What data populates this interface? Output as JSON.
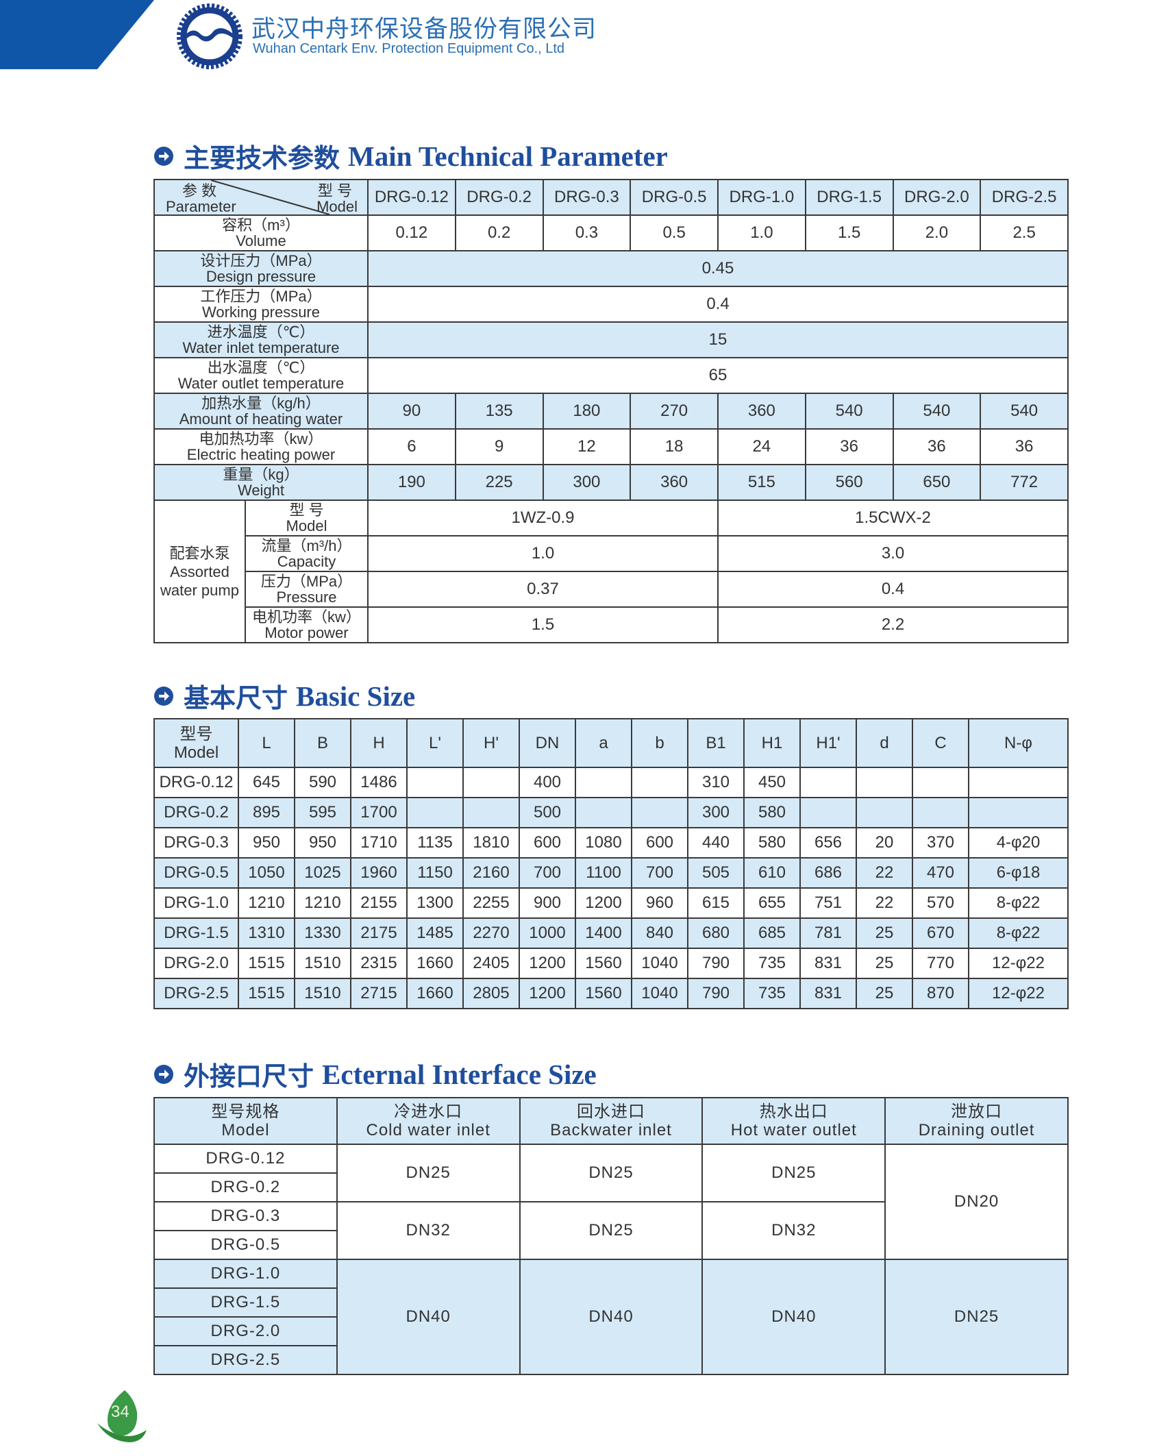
{
  "header": {
    "company_cn": "武汉中舟环保设备股份有限公司",
    "company_en": "Wuhan Centark Env. Protection Equipment Co., Ltd",
    "brand_color": "#1f4e9c"
  },
  "tech": {
    "title_cn": "主要技术参数",
    "title_en": "Main Technical Parameter",
    "corner": {
      "param_cn": "参 数",
      "param_en": "Parameter",
      "model_cn": "型 号",
      "model_en": "Model"
    },
    "models": [
      "DRG-0.12",
      "DRG-0.2",
      "DRG-0.3",
      "DRG-0.5",
      "DRG-1.0",
      "DRG-1.5",
      "DRG-2.0",
      "DRG-2.5"
    ],
    "rows": [
      {
        "cn": "容积（m³）",
        "en": "Volume",
        "values": [
          "0.12",
          "0.2",
          "0.3",
          "0.5",
          "1.0",
          "1.5",
          "2.0",
          "2.5"
        ]
      },
      {
        "cn": "设计压力（MPa）",
        "en": "Design pressure",
        "value": "0.45"
      },
      {
        "cn": "工作压力（MPa）",
        "en": "Working pressure",
        "value": "0.4"
      },
      {
        "cn": "进水温度（℃）",
        "en": "Water inlet temperature",
        "value": "15"
      },
      {
        "cn": "出水温度（℃）",
        "en": "Water outlet temperature",
        "value": "65"
      },
      {
        "cn": "加热水量（kg/h）",
        "en": "Amount of heating water",
        "values": [
          "90",
          "135",
          "180",
          "270",
          "360",
          "540",
          "540",
          "540"
        ]
      },
      {
        "cn": "电加热功率（kw）",
        "en": "Electric heating power",
        "values": [
          "6",
          "9",
          "12",
          "18",
          "24",
          "36",
          "36",
          "36"
        ]
      },
      {
        "cn": "重量（kg）",
        "en": "Weight",
        "values": [
          "190",
          "225",
          "300",
          "360",
          "515",
          "560",
          "650",
          "772"
        ]
      }
    ],
    "pump": {
      "label_cn": "配套水泵",
      "label_en_1": "Assorted",
      "label_en_2": "water pump",
      "rows": [
        {
          "cn": "型 号",
          "en": "Model",
          "values": [
            "1WZ-0.9",
            "1.5CWX-2"
          ]
        },
        {
          "cn": "流量（m³/h）",
          "en": "Capacity",
          "values": [
            "1.0",
            "3.0"
          ]
        },
        {
          "cn": "压力（MPa）",
          "en": "Pressure",
          "values": [
            "0.37",
            "0.4"
          ]
        },
        {
          "cn": "电机功率（kw）",
          "en": "Motor power",
          "values": [
            "1.5",
            "2.2"
          ]
        }
      ]
    }
  },
  "basic": {
    "title_cn": "基本尺寸",
    "title_en": "Basic Size",
    "model_header_cn": "型号",
    "model_header_en": "Model",
    "columns": [
      "L",
      "B",
      "H",
      "L'",
      "H'",
      "DN",
      "a",
      "b",
      "B1",
      "H1",
      "H1'",
      "d",
      "C",
      "N-φ"
    ],
    "rows": [
      {
        "model": "DRG-0.12",
        "values": [
          "645",
          "590",
          "1486",
          "",
          "",
          "400",
          "",
          "",
          "310",
          "450",
          "",
          "",
          "",
          ""
        ]
      },
      {
        "model": "DRG-0.2",
        "values": [
          "895",
          "595",
          "1700",
          "",
          "",
          "500",
          "",
          "",
          "300",
          "580",
          "",
          "",
          "",
          ""
        ]
      },
      {
        "model": "DRG-0.3",
        "values": [
          "950",
          "950",
          "1710",
          "1135",
          "1810",
          "600",
          "1080",
          "600",
          "440",
          "580",
          "656",
          "20",
          "370",
          "4-φ20"
        ]
      },
      {
        "model": "DRG-0.5",
        "values": [
          "1050",
          "1025",
          "1960",
          "1150",
          "2160",
          "700",
          "1100",
          "700",
          "505",
          "610",
          "686",
          "22",
          "470",
          "6-φ18"
        ]
      },
      {
        "model": "DRG-1.0",
        "values": [
          "1210",
          "1210",
          "2155",
          "1300",
          "2255",
          "900",
          "1200",
          "960",
          "615",
          "655",
          "751",
          "22",
          "570",
          "8-φ22"
        ]
      },
      {
        "model": "DRG-1.5",
        "values": [
          "1310",
          "1330",
          "2175",
          "1485",
          "2270",
          "1000",
          "1400",
          "840",
          "680",
          "685",
          "781",
          "25",
          "670",
          "8-φ22"
        ]
      },
      {
        "model": "DRG-2.0",
        "values": [
          "1515",
          "1510",
          "2315",
          "1660",
          "2405",
          "1200",
          "1560",
          "1040",
          "790",
          "735",
          "831",
          "25",
          "770",
          "12-φ22"
        ]
      },
      {
        "model": "DRG-2.5",
        "values": [
          "1515",
          "1510",
          "2715",
          "1660",
          "2805",
          "1200",
          "1560",
          "1040",
          "790",
          "735",
          "831",
          "25",
          "870",
          "12-φ22"
        ]
      }
    ]
  },
  "interface": {
    "title_cn": "外接口尺寸",
    "title_en": "Ecternal Interface Size",
    "headers": [
      {
        "cn": "型号规格",
        "en": "Model"
      },
      {
        "cn": "冷进水口",
        "en": "Cold water inlet"
      },
      {
        "cn": "回水进口",
        "en": "Backwater inlet"
      },
      {
        "cn": "热水出口",
        "en": "Hot water outlet"
      },
      {
        "cn": "泄放口",
        "en": "Draining outlet"
      }
    ],
    "models": [
      "DRG-0.12",
      "DRG-0.2",
      "DRG-0.3",
      "DRG-0.5",
      "DRG-1.0",
      "DRG-1.5",
      "DRG-2.0",
      "DRG-2.5"
    ],
    "groups": [
      {
        "cold": "DN25",
        "back": "DN25",
        "hot": "DN25"
      },
      {
        "cold": "DN32",
        "back": "DN25",
        "hot": "DN32"
      },
      {
        "cold": "DN40",
        "back": "DN40",
        "hot": "DN40"
      }
    ],
    "drain": [
      "DN20",
      "DN25"
    ]
  },
  "footer": {
    "page_number": "34"
  }
}
